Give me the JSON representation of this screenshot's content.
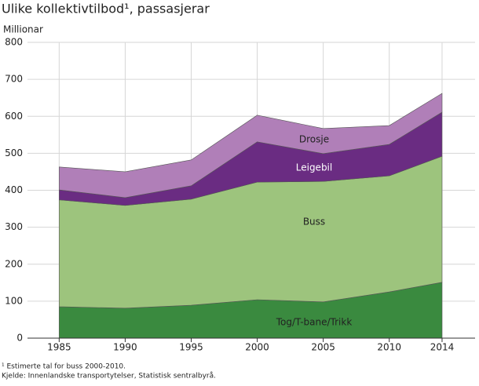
{
  "chart_data": {
    "type": "stacked-area",
    "title": "Ulike kollektivtilbod¹, passasjerar",
    "y_label": "Millionar",
    "x": [
      1985,
      1990,
      1995,
      2000,
      2005,
      2010,
      2014
    ],
    "series": [
      {
        "name": "Tog/T-bane/Trikk",
        "color": "#3a8a3f",
        "values": [
          85,
          81,
          89,
          104,
          98,
          125,
          151
        ]
      },
      {
        "name": "Buss",
        "color": "#9dc47d",
        "values": [
          289,
          278,
          287,
          318,
          326,
          314,
          341
        ]
      },
      {
        "name": "Leigebil",
        "color": "#6a2c82",
        "values": [
          27,
          21,
          36,
          109,
          75,
          85,
          119
        ]
      },
      {
        "name": "Drosje",
        "color": "#b07fb8",
        "values": [
          62,
          70,
          70,
          72,
          68,
          51,
          51
        ]
      }
    ],
    "xlim": [
      1982.6,
      2016.5
    ],
    "xticks": [
      1985,
      1990,
      1995,
      2000,
      2005,
      2010,
      2014
    ],
    "ylim": [
      0,
      800
    ],
    "yticks": [
      0,
      100,
      200,
      300,
      400,
      500,
      600,
      700,
      800
    ],
    "grid": true,
    "footnotes": [
      "¹ Estimerte tal for buss 2000-2010.",
      "Kjelde: Innenlandske transportytelser, Statistisk sentralbyrå."
    ]
  }
}
